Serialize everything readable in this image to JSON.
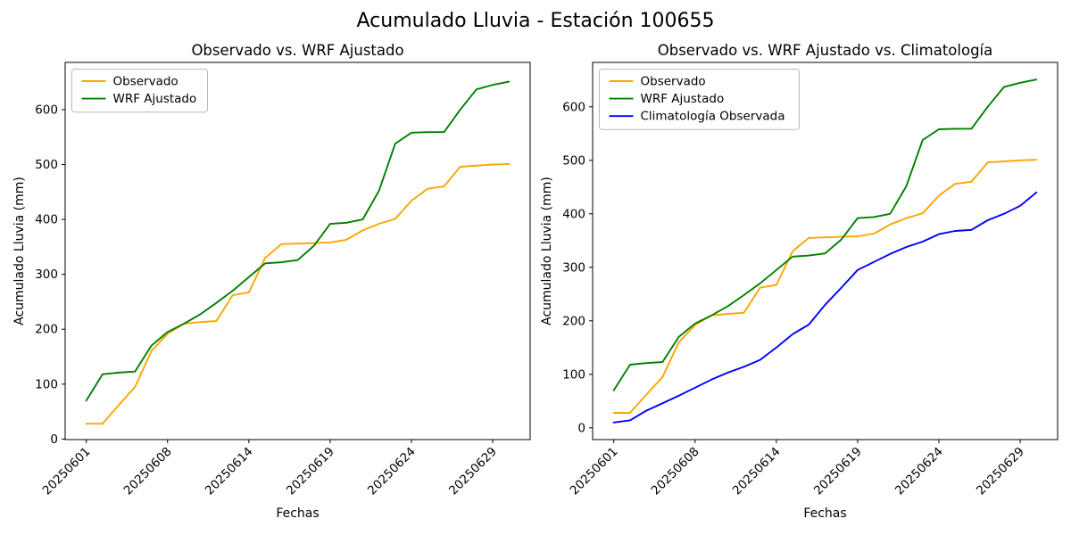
{
  "figure": {
    "title": "Acumulado Lluvia - Estación 100655",
    "background": "#ffffff",
    "text_color": "#000000"
  },
  "chart_data": [
    {
      "type": "line",
      "title": "Observado vs. WRF Ajustado",
      "xlabel": "Fechas",
      "ylabel": "Acumulado Lluvia (mm)",
      "x_tick_labels": [
        "20250601",
        "20250608",
        "20250614",
        "20250619",
        "20250624",
        "20250629"
      ],
      "x_tick_indices": [
        0,
        5,
        10,
        15,
        20,
        25
      ],
      "n_points": 27,
      "y_ticks": [
        0,
        100,
        200,
        300,
        400,
        500,
        600
      ],
      "xlim": [
        -1.3,
        27.3
      ],
      "ylim": [
        -1,
        686
      ],
      "grid": false,
      "legend_position": "upper left",
      "series": [
        {
          "name": "Observado",
          "color": "#FFA500",
          "values": [
            28,
            28,
            62,
            95,
            160,
            192,
            210,
            213,
            215,
            262,
            267,
            330,
            355,
            356,
            357,
            358,
            363,
            380,
            392,
            401,
            434,
            456,
            460,
            496,
            498,
            500,
            501
          ]
        },
        {
          "name": "WRF Ajustado",
          "color": "#008000",
          "values": [
            70,
            118,
            121,
            123,
            170,
            195,
            210,
            227,
            248,
            270,
            295,
            320,
            322,
            326,
            352,
            392,
            394,
            400,
            452,
            538,
            558,
            559,
            559,
            600,
            637,
            645,
            651
          ]
        }
      ]
    },
    {
      "type": "line",
      "title": "Observado vs. WRF Ajustado vs. Climatología",
      "xlabel": "Fechas",
      "ylabel": "Acumulado Lluvia (mm)",
      "x_tick_labels": [
        "20250601",
        "20250608",
        "20250614",
        "20250619",
        "20250624",
        "20250629"
      ],
      "x_tick_indices": [
        0,
        5,
        10,
        15,
        20,
        25
      ],
      "n_points": 27,
      "y_ticks": [
        0,
        100,
        200,
        300,
        400,
        500,
        600
      ],
      "xlim": [
        -1.3,
        27.3
      ],
      "ylim": [
        -22,
        683
      ],
      "grid": false,
      "legend_position": "upper left",
      "series": [
        {
          "name": "Observado",
          "color": "#FFA500",
          "values": [
            28,
            28,
            62,
            95,
            160,
            192,
            210,
            213,
            215,
            262,
            267,
            330,
            355,
            356,
            357,
            358,
            363,
            380,
            392,
            401,
            434,
            456,
            460,
            496,
            498,
            500,
            501
          ]
        },
        {
          "name": "WRF Ajustado",
          "color": "#008000",
          "values": [
            70,
            118,
            121,
            123,
            170,
            195,
            210,
            227,
            248,
            270,
            295,
            320,
            322,
            326,
            352,
            392,
            394,
            400,
            452,
            538,
            558,
            559,
            559,
            600,
            637,
            645,
            651
          ]
        },
        {
          "name": "Climatología Observada",
          "color": "#0000FF",
          "values": [
            10,
            14,
            32,
            46,
            60,
            75,
            90,
            103,
            114,
            127,
            150,
            175,
            193,
            230,
            262,
            295,
            310,
            325,
            338,
            348,
            362,
            368,
            370,
            388,
            400,
            415,
            440
          ]
        }
      ]
    }
  ]
}
